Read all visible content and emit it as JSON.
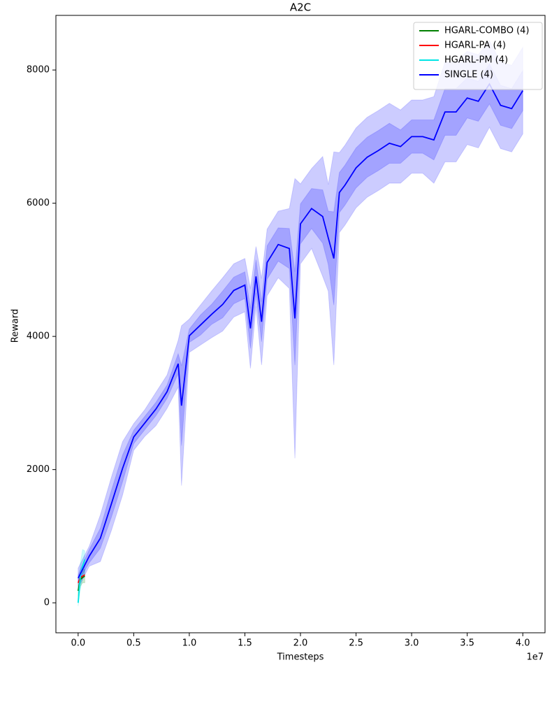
{
  "chart_data": {
    "type": "line",
    "title": "A2C",
    "x_label": "Timesteps",
    "y_label": "Reward",
    "x_offset_label": "1e7",
    "xlim": [
      -2000000,
      42000000
    ],
    "ylim": [
      -450,
      8820
    ],
    "xticks": [
      {
        "value": 0,
        "label": "0.0"
      },
      {
        "value": 5000000,
        "label": "0.5"
      },
      {
        "value": 10000000,
        "label": "1.0"
      },
      {
        "value": 15000000,
        "label": "1.5"
      },
      {
        "value": 20000000,
        "label": "2.0"
      },
      {
        "value": 25000000,
        "label": "2.5"
      },
      {
        "value": 30000000,
        "label": "3.0"
      },
      {
        "value": 35000000,
        "label": "3.5"
      },
      {
        "value": 40000000,
        "label": "4.0"
      }
    ],
    "yticks": [
      0,
      2000,
      4000,
      6000,
      8000
    ],
    "grid": false,
    "legend": "upper right",
    "series": [
      {
        "name": "HGARL-COMBO (4)",
        "color": "#008000",
        "x": [
          0,
          200000,
          400000,
          600000
        ],
        "values": [
          180,
          350,
          380,
          400
        ],
        "band": [
          {
            "lower": [
              100,
              250,
              300,
              300
            ],
            "upper": [
              300,
              450,
              500,
              500
            ]
          }
        ]
      },
      {
        "name": "HGARL-PA (4)",
        "color": "#ff0000",
        "x": [
          0,
          200000,
          400000,
          600000
        ],
        "values": [
          300,
          380,
          400,
          420
        ]
      },
      {
        "name": "HGARL-PM (4)",
        "color": "#00e5e5",
        "x": [
          0,
          200000,
          400000,
          600000
        ],
        "values": [
          0,
          400,
          550,
          650
        ],
        "band": [
          {
            "lower": [
              -50,
              200,
              350,
              450
            ],
            "upper": [
              100,
              600,
              800,
              780
            ]
          }
        ]
      },
      {
        "name": "SINGLE (4)",
        "color": "#0000ff",
        "x": [
          0,
          1000000,
          2000000,
          3000000,
          4000000,
          5000000,
          6000000,
          7000000,
          8000000,
          9000000,
          9300000,
          10000000,
          11000000,
          12000000,
          13000000,
          14000000,
          15000000,
          15500000,
          16000000,
          16500000,
          17000000,
          18000000,
          19000000,
          19500000,
          20000000,
          21000000,
          22000000,
          22500000,
          23000000,
          23500000,
          24000000,
          25000000,
          26000000,
          27000000,
          28000000,
          29000000,
          30000000,
          31000000,
          32000000,
          33000000,
          34000000,
          35000000,
          36000000,
          37000000,
          38000000,
          39000000,
          40000000
        ],
        "values": [
          370,
          700,
          970,
          1490,
          2020,
          2490,
          2700,
          2910,
          3170,
          3590,
          2960,
          4010,
          4170,
          4330,
          4480,
          4690,
          4770,
          4120,
          4900,
          4220,
          5110,
          5380,
          5320,
          4270,
          5690,
          5920,
          5800,
          5480,
          5170,
          6160,
          6270,
          6530,
          6690,
          6790,
          6900,
          6850,
          7000,
          7000,
          6950,
          7370,
          7370,
          7580,
          7530,
          7790,
          7470,
          7420,
          7690
        ],
        "band": [
          {
            "lower": [
              220,
              550,
              620,
              1090,
              1620,
              2290,
              2500,
              2660,
              2920,
              3240,
              1760,
              3760,
              3870,
              3980,
              4080,
              4290,
              4370,
              3520,
              4450,
              3570,
              4610,
              4880,
              4720,
              2170,
              5090,
              5320,
              4900,
              4680,
              3570,
              5560,
              5670,
              5930,
              6090,
              6190,
              6300,
              6300,
              6450,
              6450,
              6300,
              6620,
              6620,
              6880,
              6830,
              7140,
              6820,
              6770,
              7040
            ],
            "upper": [
              520,
              850,
              1320,
              1890,
              2420,
              2690,
              2900,
              3160,
              3420,
              3940,
              4160,
              4260,
              4470,
              4680,
              4880,
              5090,
              5170,
              4720,
              5350,
              4870,
              5610,
              5880,
              5920,
              6370,
              6290,
              6520,
              6700,
              6280,
              6770,
              6760,
              6870,
              7130,
              7290,
              7390,
              7500,
              7400,
              7550,
              7550,
              7600,
              8120,
              8120,
              8280,
              8230,
              8440,
              8120,
              8070,
              8340
            ]
          },
          {
            "lower": [
              320,
              600,
              820,
              1290,
              1820,
              2390,
              2600,
              2810,
              3070,
              3440,
              2360,
              3910,
              4020,
              4180,
              4280,
              4490,
              4570,
              3820,
              4650,
              3920,
              4860,
              5130,
              5020,
              3570,
              5390,
              5620,
              5400,
              5080,
              4470,
              5860,
              5970,
              6230,
              6390,
              6490,
              6600,
              6600,
              6750,
              6750,
              6650,
              7020,
              7020,
              7280,
              7230,
              7490,
              7170,
              7120,
              7390
            ],
            "upper": [
              420,
              800,
              1120,
              1690,
              2220,
              2590,
              2800,
              3010,
              3270,
              3740,
              3560,
              4110,
              4320,
              4480,
              4680,
              4890,
              4970,
              4420,
              5150,
              4520,
              5360,
              5630,
              5620,
              4970,
              5990,
              6220,
              6200,
              5880,
              5870,
              6460,
              6570,
              6830,
              6990,
              7090,
              7200,
              7100,
              7250,
              7250,
              7250,
              7720,
              7720,
              7880,
              7830,
              8090,
              7770,
              7720,
              7990
            ]
          }
        ]
      }
    ]
  }
}
